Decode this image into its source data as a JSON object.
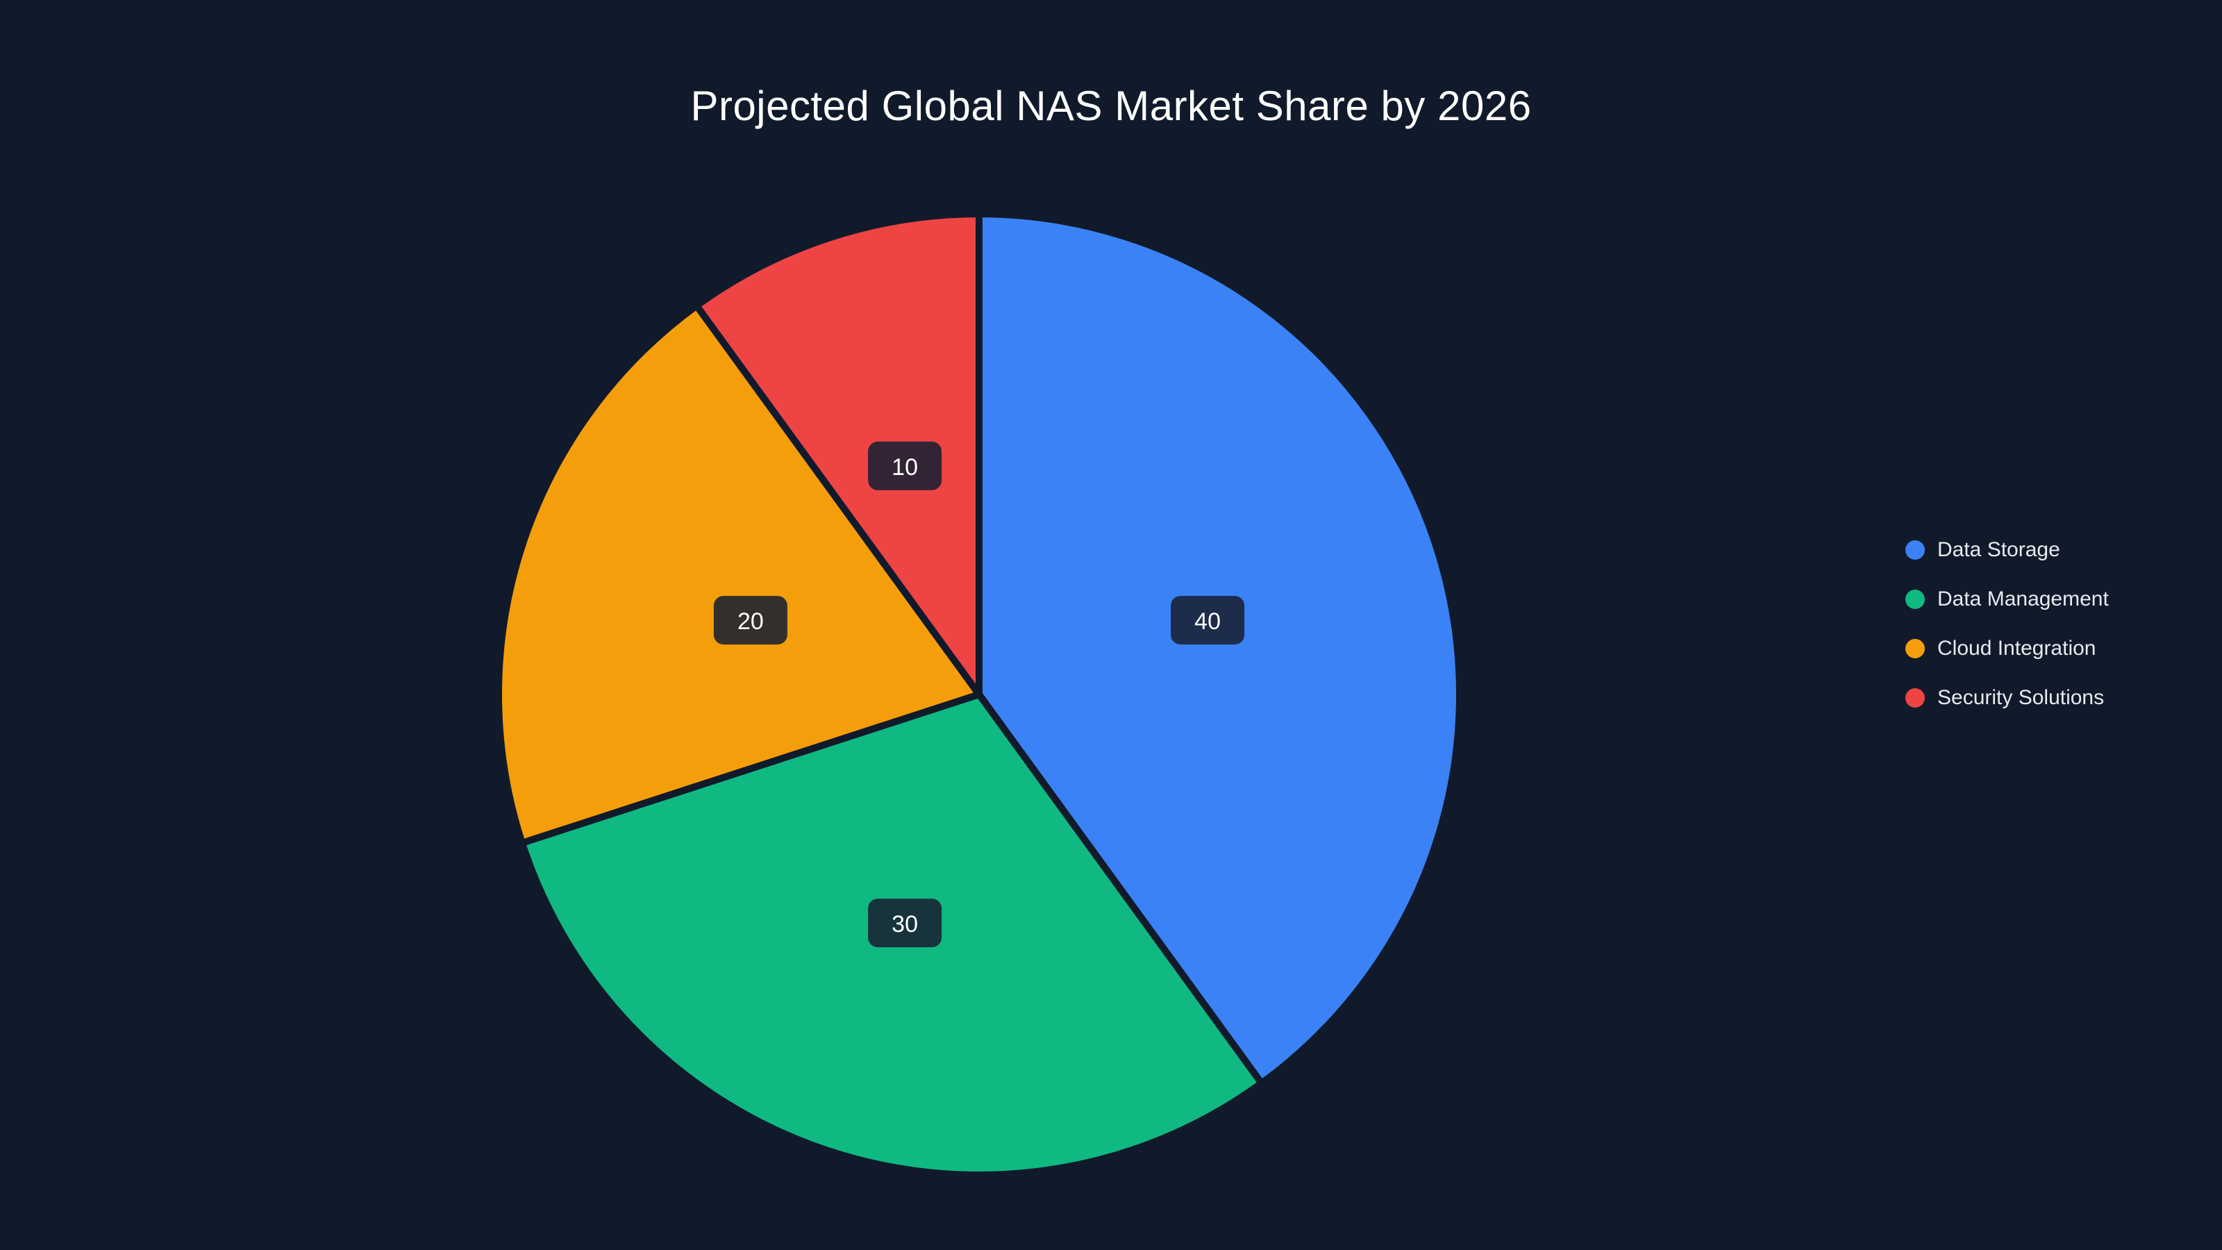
{
  "chart_data": {
    "type": "pie",
    "title": "Projected Global NAS Market Share by 2026",
    "categories": [
      "Data Storage",
      "Data Management",
      "Cloud Integration",
      "Security Solutions"
    ],
    "values": [
      40,
      30,
      20,
      10
    ],
    "data_labels": [
      "40",
      "30",
      "20",
      "10"
    ],
    "colors": [
      "#3b82f6",
      "#10b981",
      "#f59e0b",
      "#ef4444"
    ],
    "total": 100,
    "start_angle_deg": 0,
    "direction": "clockwise",
    "legend_position": "right"
  },
  "theme": {
    "background": "#111a2b",
    "title_color": "#ffffff",
    "legend_text_color": "#e8eaed",
    "label_box_color": "rgba(24,32,50,0.88)",
    "label_text_color": "#ffffff",
    "slice_gap_color": "#111a2b"
  }
}
